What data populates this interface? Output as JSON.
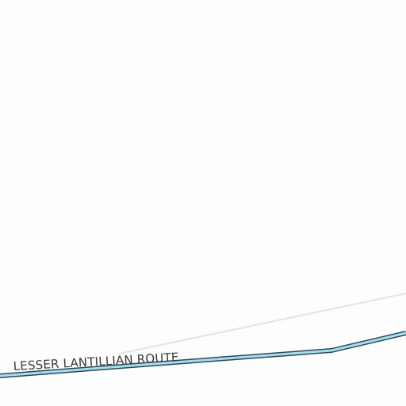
{
  "map": {
    "background_color": "#fdfdfd",
    "routes": [
      {
        "label": "LESSER LANTILLIAN ROUTE",
        "fill_color": "#aadcef",
        "casing_color": "#2a4a55"
      }
    ],
    "secondary_line_color": "#e3e3e3",
    "label_color": "#3a3a3a"
  }
}
